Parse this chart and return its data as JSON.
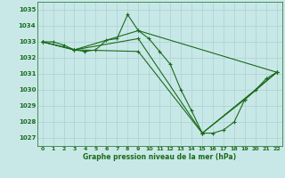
{
  "background_color": "#c8e8e8",
  "grid_color": "#b0d4d4",
  "line_color": "#1a6b1a",
  "xlabel": "Graphe pression niveau de la mer (hPa)",
  "xlim": [
    -0.5,
    22.5
  ],
  "ylim": [
    1026.5,
    1035.5
  ],
  "yticks": [
    1027,
    1028,
    1029,
    1030,
    1031,
    1032,
    1033,
    1034,
    1035
  ],
  "xticks": [
    0,
    1,
    2,
    3,
    4,
    5,
    6,
    7,
    8,
    9,
    10,
    11,
    12,
    13,
    14,
    15,
    16,
    17,
    18,
    19,
    20,
    21,
    22
  ],
  "lines": [
    {
      "x": [
        0,
        1,
        2,
        3,
        4,
        5,
        6,
        7,
        8,
        9,
        10,
        11,
        12,
        13,
        14,
        15,
        16,
        17,
        18,
        19,
        20,
        21,
        22
      ],
      "y": [
        1033.0,
        1033.0,
        1032.8,
        1032.5,
        1032.4,
        1032.5,
        1033.1,
        1033.2,
        1034.7,
        1033.7,
        1033.2,
        1032.4,
        1031.6,
        1030.0,
        1028.7,
        1027.3,
        1027.3,
        1027.5,
        1028.0,
        1029.4,
        1030.0,
        1030.7,
        1031.1
      ]
    },
    {
      "x": [
        0,
        3,
        9,
        22
      ],
      "y": [
        1033.0,
        1032.5,
        1033.7,
        1031.1
      ]
    },
    {
      "x": [
        0,
        3,
        9,
        15,
        22
      ],
      "y": [
        1033.0,
        1032.5,
        1033.2,
        1027.3,
        1031.1
      ]
    },
    {
      "x": [
        0,
        3,
        9,
        15,
        19,
        22
      ],
      "y": [
        1033.0,
        1032.5,
        1032.4,
        1027.3,
        1029.4,
        1031.1
      ]
    }
  ]
}
